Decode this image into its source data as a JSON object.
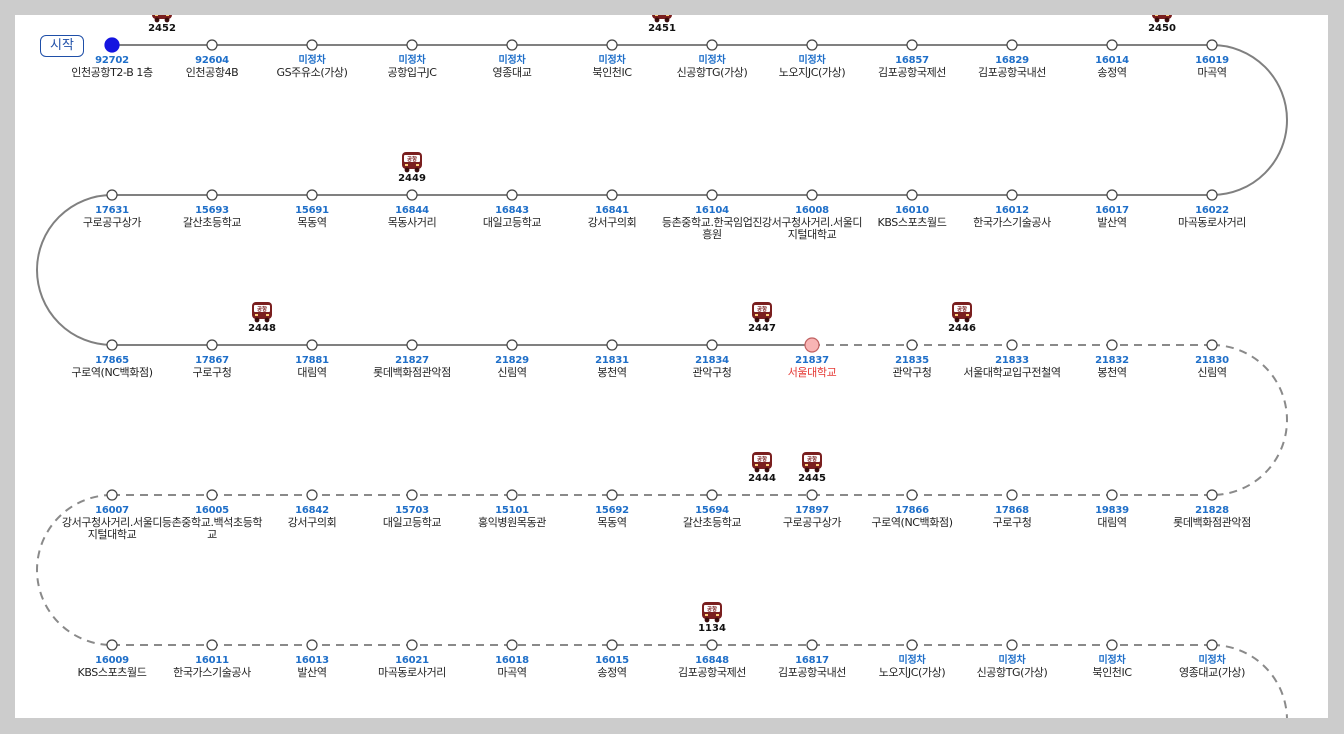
{
  "start_label": "시작",
  "colors": {
    "stop_id": "#1f6fc9",
    "current_stop": "#e53935",
    "start_dot": "#1515e0",
    "current_dot": "#f8b4b4",
    "bus": "#7a1f1f"
  },
  "bus_icon_label": "공항",
  "rows": [
    {
      "direction": "forward",
      "stops": [
        {
          "id": "92702",
          "name": "인천공항T2-B 1층"
        },
        {
          "id": "92604",
          "name": "인천공항4B"
        },
        {
          "id": "미정차",
          "name": "GS주유소(가상)"
        },
        {
          "id": "미정차",
          "name": "공항입구JC"
        },
        {
          "id": "미정차",
          "name": "영종대교"
        },
        {
          "id": "미정차",
          "name": "북인천IC"
        },
        {
          "id": "미정차",
          "name": "신공항TG(가상)"
        },
        {
          "id": "미정차",
          "name": "노오지JC(가상)"
        },
        {
          "id": "16857",
          "name": "김포공항국제선"
        },
        {
          "id": "16829",
          "name": "김포공항국내선"
        },
        {
          "id": "16014",
          "name": "송정역"
        },
        {
          "id": "16019",
          "name": "마곡역"
        }
      ]
    },
    {
      "direction": "forward",
      "stops": [
        {
          "id": "17631",
          "name": "구로공구상가"
        },
        {
          "id": "15693",
          "name": "갈산초등학교"
        },
        {
          "id": "15691",
          "name": "목동역"
        },
        {
          "id": "16844",
          "name": "목동사거리"
        },
        {
          "id": "16843",
          "name": "대일고등학교"
        },
        {
          "id": "16841",
          "name": "강서구의회"
        },
        {
          "id": "16104",
          "name": "등촌중학교.한국임업진흥원"
        },
        {
          "id": "16008",
          "name": "강서구청사거리.서울디지털대학교"
        },
        {
          "id": "16010",
          "name": "KBS스포츠월드"
        },
        {
          "id": "16012",
          "name": "한국가스기술공사"
        },
        {
          "id": "16017",
          "name": "발산역"
        },
        {
          "id": "16022",
          "name": "마곡동로사거리"
        }
      ]
    },
    {
      "direction": "forward",
      "stops": [
        {
          "id": "17865",
          "name": "구로역(NC백화점)"
        },
        {
          "id": "17867",
          "name": "구로구청"
        },
        {
          "id": "17881",
          "name": "대림역"
        },
        {
          "id": "21827",
          "name": "롯데백화점관악점"
        },
        {
          "id": "21829",
          "name": "신림역"
        },
        {
          "id": "21831",
          "name": "봉천역"
        },
        {
          "id": "21834",
          "name": "관악구청"
        },
        {
          "id": "21837",
          "name": "서울대학교",
          "current": true
        },
        {
          "id": "21835",
          "name": "관악구청"
        },
        {
          "id": "21833",
          "name": "서울대학교입구전철역"
        },
        {
          "id": "21832",
          "name": "봉천역"
        },
        {
          "id": "21830",
          "name": "신림역"
        }
      ]
    },
    {
      "direction": "return",
      "stops": [
        {
          "id": "16007",
          "name": "강서구청사거리.서울디지털대학교"
        },
        {
          "id": "16005",
          "name": "등촌중학교.백석초등학교"
        },
        {
          "id": "16842",
          "name": "강서구의회"
        },
        {
          "id": "15703",
          "name": "대일고등학교"
        },
        {
          "id": "15101",
          "name": "홍익병원목동관"
        },
        {
          "id": "15692",
          "name": "목동역"
        },
        {
          "id": "15694",
          "name": "갈산초등학교"
        },
        {
          "id": "17897",
          "name": "구로공구상가"
        },
        {
          "id": "17866",
          "name": "구로역(NC백화점)"
        },
        {
          "id": "17868",
          "name": "구로구청"
        },
        {
          "id": "19839",
          "name": "대림역"
        },
        {
          "id": "21828",
          "name": "롯데백화점관악점"
        }
      ]
    },
    {
      "direction": "return",
      "stops": [
        {
          "id": "16009",
          "name": "KBS스포츠월드"
        },
        {
          "id": "16011",
          "name": "한국가스기술공사"
        },
        {
          "id": "16013",
          "name": "발산역"
        },
        {
          "id": "16021",
          "name": "마곡동로사거리"
        },
        {
          "id": "16018",
          "name": "마곡역"
        },
        {
          "id": "16015",
          "name": "송정역"
        },
        {
          "id": "16848",
          "name": "김포공항국제선"
        },
        {
          "id": "16817",
          "name": "김포공항국내선"
        },
        {
          "id": "미정차",
          "name": "노오지JC(가상)"
        },
        {
          "id": "미정차",
          "name": "신공항TG(가상)"
        },
        {
          "id": "미정차",
          "name": "북인천IC"
        },
        {
          "id": "미정차",
          "name": "영종대교(가상)"
        }
      ]
    }
  ],
  "buses": [
    {
      "number": "2452",
      "row": 0,
      "slot": 0.5
    },
    {
      "number": "2451",
      "row": 0,
      "slot": 5.5
    },
    {
      "number": "2450",
      "row": 0,
      "slot": 10.5
    },
    {
      "number": "2449",
      "row": 1,
      "slot": 3
    },
    {
      "number": "2448",
      "row": 2,
      "slot": 1.5
    },
    {
      "number": "2447",
      "row": 2,
      "slot": 6.5
    },
    {
      "number": "2446",
      "row": 2,
      "slot": 8.5
    },
    {
      "number": "2444",
      "row": 3,
      "slot": 6.5
    },
    {
      "number": "2445",
      "row": 3,
      "slot": 7
    },
    {
      "number": "1134",
      "row": 4,
      "slot": 6
    }
  ]
}
